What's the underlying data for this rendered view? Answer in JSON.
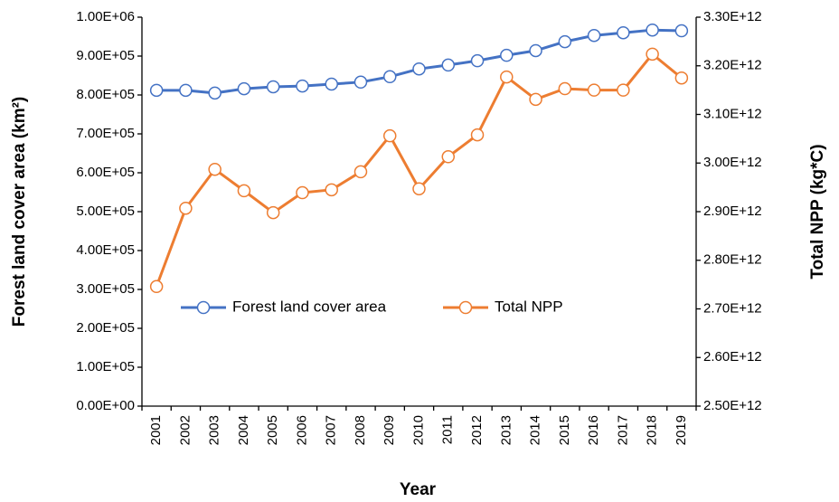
{
  "chart_data": {
    "type": "line",
    "xlabel": "Year",
    "ylabel": "Forest land cover area (km²)",
    "y2label": "Total NPP (kg*C)",
    "categories": [
      "2001",
      "2002",
      "2003",
      "2004",
      "2005",
      "2006",
      "2007",
      "2008",
      "2009",
      "2010",
      "2011",
      "2012",
      "2013",
      "2014",
      "2015",
      "2016",
      "2017",
      "2018",
      "2019"
    ],
    "series": [
      {
        "name": "Forest land cover area",
        "color": "#4472c4",
        "axis": "y",
        "values": [
          812000,
          812000,
          805000,
          816000,
          821000,
          823000,
          828000,
          833000,
          847000,
          867000,
          877000,
          888000,
          902000,
          914000,
          937000,
          953000,
          960000,
          967000,
          965000
        ]
      },
      {
        "name": "Total NPP",
        "color": "#ed7d31",
        "axis": "y2",
        "values": [
          2746000000000,
          2907000000000,
          2987000000000,
          2943000000000,
          2898000000000,
          2939000000000,
          2945000000000,
          2982000000000,
          3056000000000,
          2947000000000,
          3013000000000,
          3058000000000,
          3177000000000,
          3131000000000,
          3153000000000,
          3150000000000,
          3150000000000,
          3224000000000,
          3175000000000
        ]
      }
    ],
    "ylim": [
      0,
      1000000
    ],
    "yticks": [
      {
        "value": 0,
        "label": "0.00E+00"
      },
      {
        "value": 100000,
        "label": "1.00E+05"
      },
      {
        "value": 200000,
        "label": "2.00E+05"
      },
      {
        "value": 300000,
        "label": "3.00E+05"
      },
      {
        "value": 400000,
        "label": "4.00E+05"
      },
      {
        "value": 500000,
        "label": "5.00E+05"
      },
      {
        "value": 600000,
        "label": "6.00E+05"
      },
      {
        "value": 700000,
        "label": "7.00E+05"
      },
      {
        "value": 800000,
        "label": "8.00E+05"
      },
      {
        "value": 900000,
        "label": "9.00E+05"
      },
      {
        "value": 1000000,
        "label": "1.00E+06"
      }
    ],
    "y2lim": [
      2500000000000,
      3300000000000
    ],
    "y2ticks": [
      {
        "value": 2500000000000,
        "label": "2.50E+12"
      },
      {
        "value": 2600000000000,
        "label": "2.60E+12"
      },
      {
        "value": 2700000000000,
        "label": "2.70E+12"
      },
      {
        "value": 2800000000000,
        "label": "2.80E+12"
      },
      {
        "value": 2900000000000,
        "label": "2.90E+12"
      },
      {
        "value": 3000000000000,
        "label": "3.00E+12"
      },
      {
        "value": 3100000000000,
        "label": "3.10E+12"
      },
      {
        "value": 3200000000000,
        "label": "3.20E+12"
      },
      {
        "value": 3300000000000,
        "label": "3.30E+12"
      }
    ],
    "grid": false,
    "legend": "center"
  }
}
